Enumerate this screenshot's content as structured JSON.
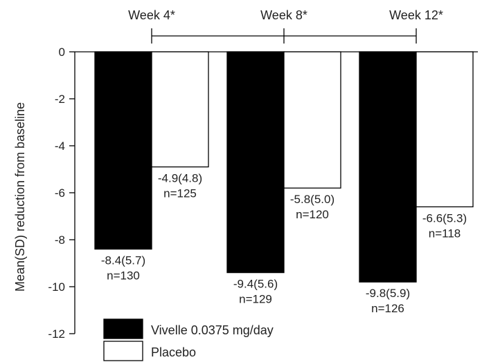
{
  "chart_data": {
    "type": "bar",
    "title": "",
    "xlabel": "",
    "ylabel": "Mean(SD) reduction from baseline",
    "ylim": [
      -12,
      0
    ],
    "yticks": [
      0,
      -2,
      -4,
      -6,
      -8,
      -10,
      -12
    ],
    "categories": [
      "Week 4*",
      "Week 8*",
      "Week 12*"
    ],
    "series": [
      {
        "name": "Vivelle 0.0375 mg/day",
        "color": "#000000",
        "values": [
          -8.4,
          -9.4,
          -9.8
        ],
        "labels": [
          "-8.4(5.7)",
          "-9.4(5.6)",
          "-9.8(5.9)"
        ],
        "n": [
          "n=130",
          "n=129",
          "n=126"
        ]
      },
      {
        "name": "Placebo",
        "color": "#ffffff",
        "values": [
          -4.9,
          -5.8,
          -6.6
        ],
        "labels": [
          "-4.9(4.8)",
          "-5.8(5.0)",
          "-6.6(5.3)"
        ],
        "n": [
          "n=125",
          "n=120",
          "n=118"
        ]
      }
    ],
    "grid": false,
    "legend": "bottom-left"
  }
}
